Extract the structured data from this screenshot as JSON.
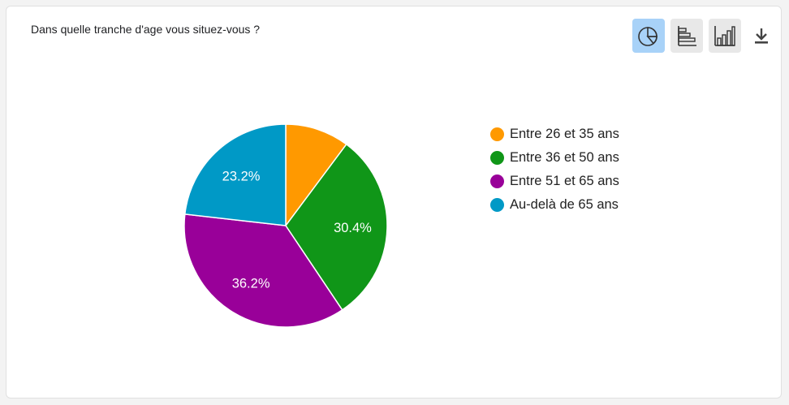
{
  "question": {
    "title": "Dans quelle tranche d'age vous situez-vous ?"
  },
  "toolbar": {
    "buttons": [
      {
        "icon": "pie-chart-icon",
        "active": true
      },
      {
        "icon": "horizontal-bar-chart-icon",
        "active": false
      },
      {
        "icon": "vertical-bar-chart-icon",
        "active": false
      }
    ],
    "download_icon": "download-icon",
    "active_color": "#a8d2f8"
  },
  "chart_data": {
    "type": "pie",
    "title": "Dans quelle tranche d'age vous situez-vous ?",
    "legend_position": "right",
    "labels": [
      "Entre 26 et 35 ans",
      "Entre 36 et 50 ans",
      "Entre 51 et 65 ans",
      "Au-delà de 65 ans"
    ],
    "values": [
      10.2,
      30.4,
      36.2,
      23.2
    ],
    "data_labels": [
      "",
      "30.4%",
      "36.2%",
      "23.2%"
    ],
    "colors": [
      "#ff9900",
      "#109618",
      "#990099",
      "#0099c6"
    ]
  }
}
